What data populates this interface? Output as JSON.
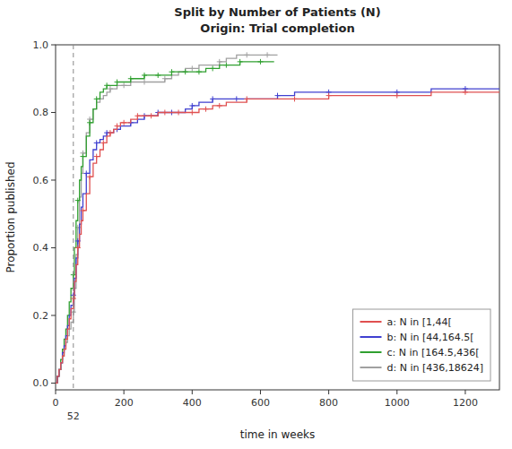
{
  "chart_data": {
    "type": "step",
    "title": "Split by Number of Patients (N)",
    "subtitle": "Origin: Trial completion",
    "x_label": "time in weeks",
    "y_label": "Proportion published",
    "xlim": [
      0,
      1300
    ],
    "ylim": [
      -0.02,
      1.0
    ],
    "xticks": [
      0,
      200,
      400,
      600,
      800,
      1000,
      1200
    ],
    "yticks": [
      {
        "value": 0.0,
        "label": "0.0"
      },
      0.2,
      0.4,
      0.6,
      0.8,
      {
        "value": 1.0,
        "label": "1.0"
      }
    ],
    "grid": false,
    "legend": "lower right",
    "annotations": [
      {
        "x": 52,
        "text": "52",
        "color": "#888888",
        "line_style": "dashed"
      }
    ],
    "series": [
      {
        "name": "a: N in [1,44[",
        "color": "#e05050",
        "x": [
          0,
          5,
          10,
          15,
          20,
          25,
          30,
          35,
          40,
          45,
          52,
          55,
          60,
          65,
          70,
          75,
          80,
          90,
          100,
          110,
          120,
          130,
          140,
          150,
          160,
          170,
          180,
          190,
          200,
          220,
          240,
          260,
          280,
          300,
          320,
          340,
          360,
          380,
          400,
          420,
          440,
          460,
          480,
          500,
          520,
          560,
          600,
          700,
          800,
          900,
          1000,
          1100,
          1200,
          1300
        ],
        "values": [
          0.0,
          0.02,
          0.04,
          0.06,
          0.08,
          0.1,
          0.13,
          0.16,
          0.19,
          0.22,
          0.25,
          0.3,
          0.35,
          0.4,
          0.44,
          0.48,
          0.51,
          0.56,
          0.61,
          0.65,
          0.67,
          0.69,
          0.71,
          0.73,
          0.74,
          0.75,
          0.76,
          0.77,
          0.77,
          0.78,
          0.79,
          0.79,
          0.79,
          0.8,
          0.8,
          0.8,
          0.8,
          0.8,
          0.8,
          0.81,
          0.81,
          0.82,
          0.82,
          0.83,
          0.83,
          0.84,
          0.84,
          0.84,
          0.85,
          0.85,
          0.85,
          0.86,
          0.86,
          0.86
        ],
        "censor_x": [
          52,
          65,
          80,
          100,
          120,
          140,
          160,
          180,
          200,
          240,
          280,
          320,
          360,
          400,
          440,
          480,
          560,
          700,
          800,
          1000,
          1200
        ],
        "censor_y": [
          0.25,
          0.4,
          0.51,
          0.61,
          0.67,
          0.71,
          0.74,
          0.76,
          0.77,
          0.79,
          0.79,
          0.8,
          0.8,
          0.8,
          0.81,
          0.82,
          0.84,
          0.84,
          0.85,
          0.85,
          0.86
        ]
      },
      {
        "name": "b: N in [44,164.5[",
        "color": "#4040d0",
        "x": [
          0,
          5,
          10,
          15,
          20,
          25,
          30,
          35,
          40,
          45,
          52,
          55,
          60,
          65,
          70,
          75,
          80,
          90,
          100,
          110,
          120,
          130,
          140,
          150,
          160,
          170,
          180,
          190,
          200,
          220,
          240,
          260,
          280,
          300,
          320,
          340,
          360,
          380,
          400,
          420,
          440,
          460,
          480,
          500,
          530,
          560,
          600,
          650,
          700,
          800,
          900,
          1000,
          1100,
          1200,
          1300
        ],
        "values": [
          0.0,
          0.02,
          0.04,
          0.06,
          0.09,
          0.11,
          0.14,
          0.17,
          0.2,
          0.23,
          0.26,
          0.31,
          0.37,
          0.42,
          0.47,
          0.52,
          0.56,
          0.62,
          0.66,
          0.69,
          0.71,
          0.72,
          0.73,
          0.74,
          0.74,
          0.75,
          0.75,
          0.76,
          0.76,
          0.77,
          0.78,
          0.79,
          0.79,
          0.8,
          0.8,
          0.8,
          0.8,
          0.81,
          0.82,
          0.83,
          0.83,
          0.84,
          0.84,
          0.84,
          0.84,
          0.84,
          0.84,
          0.85,
          0.86,
          0.86,
          0.86,
          0.86,
          0.87,
          0.87,
          0.87
        ],
        "censor_x": [
          52,
          65,
          90,
          120,
          150,
          180,
          220,
          260,
          300,
          340,
          400,
          460,
          530,
          650,
          800,
          1000,
          1200
        ],
        "censor_y": [
          0.26,
          0.42,
          0.62,
          0.71,
          0.74,
          0.75,
          0.77,
          0.79,
          0.8,
          0.8,
          0.82,
          0.84,
          0.84,
          0.85,
          0.86,
          0.86,
          0.87
        ]
      },
      {
        "name": "c: N in [164.5,436[",
        "color": "#30a030",
        "x": [
          0,
          5,
          10,
          15,
          20,
          25,
          30,
          35,
          40,
          45,
          52,
          55,
          60,
          65,
          70,
          75,
          80,
          90,
          100,
          110,
          120,
          130,
          140,
          150,
          160,
          180,
          200,
          220,
          240,
          260,
          280,
          300,
          320,
          340,
          360,
          380,
          400,
          420,
          440,
          460,
          480,
          500,
          520,
          540,
          560,
          600,
          640
        ],
        "values": [
          0.0,
          0.02,
          0.04,
          0.07,
          0.1,
          0.13,
          0.16,
          0.2,
          0.24,
          0.28,
          0.32,
          0.4,
          0.48,
          0.54,
          0.6,
          0.64,
          0.67,
          0.73,
          0.77,
          0.81,
          0.84,
          0.86,
          0.87,
          0.88,
          0.88,
          0.89,
          0.89,
          0.9,
          0.9,
          0.91,
          0.91,
          0.91,
          0.91,
          0.92,
          0.92,
          0.92,
          0.92,
          0.92,
          0.93,
          0.93,
          0.94,
          0.94,
          0.94,
          0.95,
          0.95,
          0.95,
          0.95
        ],
        "censor_x": [
          52,
          65,
          80,
          100,
          120,
          150,
          180,
          220,
          260,
          300,
          340,
          380,
          420,
          460,
          500,
          540,
          600
        ],
        "censor_y": [
          0.32,
          0.54,
          0.67,
          0.77,
          0.84,
          0.88,
          0.89,
          0.9,
          0.91,
          0.91,
          0.92,
          0.92,
          0.92,
          0.93,
          0.94,
          0.95,
          0.95
        ]
      },
      {
        "name": "d: N in [436,18624]",
        "color": "#a0a0a0",
        "x": [
          0,
          5,
          10,
          15,
          20,
          25,
          30,
          35,
          40,
          45,
          52,
          55,
          60,
          65,
          70,
          75,
          80,
          90,
          100,
          110,
          120,
          130,
          140,
          150,
          160,
          180,
          200,
          220,
          240,
          260,
          280,
          300,
          320,
          340,
          360,
          380,
          400,
          420,
          450,
          480,
          500,
          530,
          560,
          590,
          620,
          650
        ],
        "values": [
          0.0,
          0.02,
          0.04,
          0.06,
          0.08,
          0.1,
          0.12,
          0.14,
          0.16,
          0.18,
          0.21,
          0.28,
          0.38,
          0.46,
          0.55,
          0.62,
          0.68,
          0.74,
          0.78,
          0.81,
          0.83,
          0.84,
          0.85,
          0.86,
          0.87,
          0.88,
          0.88,
          0.89,
          0.89,
          0.89,
          0.89,
          0.89,
          0.9,
          0.91,
          0.92,
          0.93,
          0.93,
          0.94,
          0.94,
          0.95,
          0.96,
          0.97,
          0.97,
          0.97,
          0.97,
          0.97
        ],
        "censor_x": [
          52,
          65,
          80,
          100,
          130,
          160,
          200,
          260,
          320,
          400,
          480,
          560,
          620
        ],
        "censor_y": [
          0.21,
          0.46,
          0.68,
          0.78,
          0.84,
          0.87,
          0.88,
          0.89,
          0.9,
          0.93,
          0.95,
          0.97,
          0.97
        ]
      }
    ]
  }
}
